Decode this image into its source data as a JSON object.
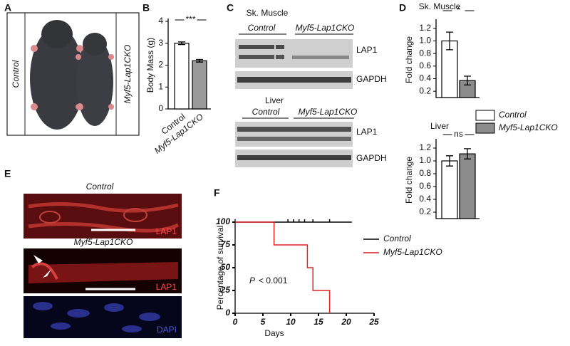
{
  "panel_labels": [
    "A",
    "B",
    "C",
    "D",
    "E",
    "F"
  ],
  "photo": {
    "labels": [
      "Control",
      "Myf5-Lap1CKO"
    ]
  },
  "blots": {
    "muscle_title": "Sk. Muscle",
    "liver_title": "Liver",
    "groups": [
      "Control",
      "Myf5-Lap1CKO"
    ],
    "bands": [
      "LAP1",
      "GAPDH"
    ]
  },
  "micro": {
    "control": "Control",
    "cko": "Myf5-Lap1CKO",
    "stain1": "LAP1",
    "stain2": "DAPI"
  },
  "chart_data": [
    {
      "type": "bar",
      "ylabel": "Body Mass (g)",
      "categories": [
        "Control",
        "Myf5-Lap1CKO"
      ],
      "values": [
        3.0,
        2.2
      ],
      "errors": [
        0.06,
        0.06
      ],
      "colors": [
        "#ffffff",
        "#9a9a9a"
      ],
      "ylim": [
        0,
        4
      ],
      "yticks": [
        0,
        1,
        2,
        3,
        4
      ],
      "significance": "***"
    },
    {
      "type": "bar",
      "title": "Sk. Muscle",
      "ylabel": "Fold change",
      "series": [
        {
          "name": "Control",
          "color": "#ffffff",
          "values": [
            1.0
          ],
          "errors": [
            0.14
          ]
        },
        {
          "name": "Myf5-Lap1CKO",
          "color": "#8c8c8c",
          "values": [
            0.37
          ],
          "errors": [
            0.07
          ]
        }
      ],
      "ylim": [
        0.1,
        1.3
      ],
      "yticks": [
        0.2,
        0.4,
        0.6,
        0.8,
        {
          "value": 1,
          "label": "1.0"
        },
        1.2
      ],
      "significance": "*"
    },
    {
      "type": "bar",
      "title": "Liver",
      "ylabel": "Fold change",
      "series": [
        {
          "color": "#ffffff",
          "values": [
            1.0
          ],
          "errors": [
            0.08
          ]
        },
        {
          "color": "#8c8c8c",
          "values": [
            1.11
          ],
          "errors": [
            0.08
          ]
        }
      ],
      "ylim": [
        0.1,
        1.3
      ],
      "yticks": [
        0.2,
        0.4,
        0.6,
        0.8,
        {
          "value": 1,
          "label": "1.0"
        },
        1.2
      ],
      "significance": "ns"
    },
    {
      "type": "survival",
      "ylabel": "Percentage of survival",
      "xlabel": "Days",
      "xlim": [
        0,
        25
      ],
      "xticks": [
        0,
        5,
        10,
        15,
        20,
        25
      ],
      "ylim": [
        0,
        100
      ],
      "yticks": [
        0,
        25,
        50,
        75,
        100
      ],
      "annotation_var": "P",
      "annotation": "< 0.001",
      "series": [
        {
          "name": "Control",
          "color": "#000000",
          "x": [
            0,
            21
          ],
          "values": [
            100,
            100
          ],
          "censored": [
            9.5,
            10.5,
            11.5,
            12.5,
            14,
            17
          ]
        },
        {
          "name": "Myf5-Lap1CKO",
          "color": "#e02424",
          "x": [
            0,
            7,
            13,
            14,
            17
          ],
          "values": [
            100,
            75,
            50,
            25,
            0
          ]
        }
      ]
    }
  ]
}
